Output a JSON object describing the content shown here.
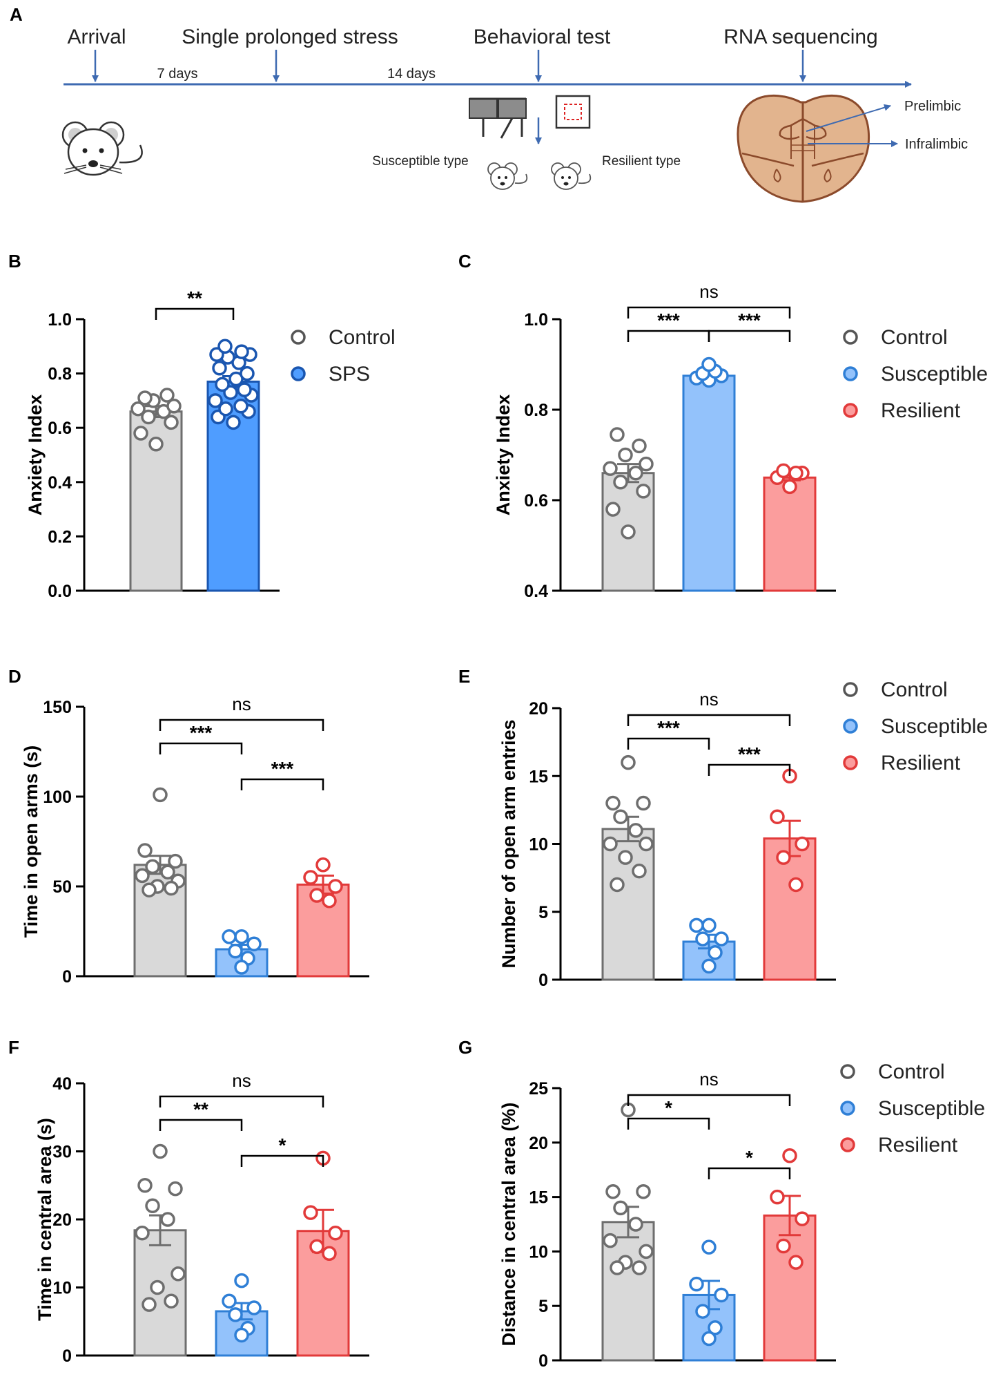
{
  "colors": {
    "control_fill": "#d9d9d9",
    "control_edge": "#6e6e6e",
    "sps_fill": "#4f9dff",
    "sps_edge": "#1a56b0",
    "susceptible_fill": "#93c2fb",
    "susceptible_edge": "#2f7fd6",
    "resilient_fill": "#fb9d9d",
    "resilient_edge": "#e23a3a",
    "timeline": "#3e6ab1",
    "brain_fill": "#e2b48e",
    "brain_edge": "#8b4a2b"
  },
  "panelA": {
    "letter": "A",
    "events": [
      {
        "label": "Arrival"
      },
      {
        "label": "Single prolonged stress"
      },
      {
        "label": "Behavioral test"
      },
      {
        "label": "RNA sequencing"
      }
    ],
    "intervals": [
      "7 days",
      "14 days"
    ],
    "susceptible_label": "Susceptible type",
    "resilient_label": "Resilient type",
    "region_labels": [
      "Prelimbic",
      "Infralimbic"
    ]
  },
  "chart_data": [
    {
      "panel": "B",
      "type": "bar",
      "categories": [
        "Control",
        "SPS"
      ],
      "ylabel": "Anxiety Index",
      "ylim": [
        0,
        1.0
      ],
      "yticks": [
        0.0,
        0.2,
        0.4,
        0.6,
        0.8,
        1.0
      ],
      "tick_labels": [
        "0.0",
        "0.2",
        "0.4",
        "0.6",
        "0.8",
        "1.0"
      ],
      "series": [
        {
          "name": "Control",
          "mean": 0.66,
          "sem": 0.02,
          "points": [
            0.54,
            0.58,
            0.62,
            0.64,
            0.66,
            0.67,
            0.68,
            0.7,
            0.72,
            0.71
          ]
        },
        {
          "name": "SPS",
          "mean": 0.77,
          "sem": 0.02,
          "points": [
            0.62,
            0.64,
            0.66,
            0.67,
            0.68,
            0.7,
            0.72,
            0.73,
            0.74,
            0.76,
            0.78,
            0.8,
            0.82,
            0.84,
            0.86,
            0.87,
            0.87,
            0.88,
            0.9
          ]
        }
      ],
      "legend": [
        "Control",
        "SPS"
      ],
      "comparisons": [
        {
          "from": 0,
          "to": 1,
          "label": "**"
        }
      ]
    },
    {
      "panel": "C",
      "type": "bar",
      "categories": [
        "Control",
        "Susceptible",
        "Resilient"
      ],
      "ylabel": "Anxiety Index",
      "ylim": [
        0.4,
        1.0
      ],
      "yticks": [
        0.4,
        0.6,
        0.8,
        1.0
      ],
      "tick_labels": [
        "0.4",
        "0.6",
        "0.8",
        "1.0"
      ],
      "series": [
        {
          "name": "Control",
          "mean": 0.66,
          "sem": 0.02,
          "points": [
            0.53,
            0.58,
            0.62,
            0.64,
            0.66,
            0.67,
            0.68,
            0.7,
            0.72,
            0.745
          ]
        },
        {
          "name": "Susceptible",
          "mean": 0.875,
          "sem": 0.006,
          "points": [
            0.865,
            0.87,
            0.875,
            0.88,
            0.885,
            0.9
          ]
        },
        {
          "name": "Resilient",
          "mean": 0.65,
          "sem": 0.006,
          "points": [
            0.63,
            0.65,
            0.66,
            0.665,
            0.66
          ]
        }
      ],
      "legend": [
        "Control",
        "Susceptible",
        "Resilient"
      ],
      "comparisons": [
        {
          "from": 0,
          "to": 1,
          "label": "***"
        },
        {
          "from": 1,
          "to": 2,
          "label": "***"
        },
        {
          "from": 0,
          "to": 2,
          "label": "ns"
        }
      ]
    },
    {
      "panel": "D",
      "type": "bar",
      "categories": [
        "Control",
        "Susceptible",
        "Resilient"
      ],
      "ylabel": "Time in open arms (s)",
      "ylim": [
        0,
        150
      ],
      "yticks": [
        0,
        50,
        100,
        150
      ],
      "tick_labels": [
        "0",
        "50",
        "100",
        "150"
      ],
      "series": [
        {
          "name": "Control",
          "mean": 62,
          "sem": 5,
          "points": [
            101,
            70,
            64,
            61,
            58,
            56,
            53,
            50,
            49,
            48
          ]
        },
        {
          "name": "Susceptible",
          "mean": 15,
          "sem": 2.5,
          "points": [
            22,
            22,
            18,
            14,
            10,
            5
          ]
        },
        {
          "name": "Resilient",
          "mean": 51,
          "sem": 5,
          "points": [
            62,
            55,
            50,
            45,
            42
          ]
        }
      ],
      "legend": [],
      "comparisons": [
        {
          "from": 0,
          "to": 1,
          "label": "***"
        },
        {
          "from": 1,
          "to": 2,
          "label": "***"
        },
        {
          "from": 0,
          "to": 2,
          "label": "ns"
        }
      ]
    },
    {
      "panel": "E",
      "type": "bar",
      "categories": [
        "Control",
        "Susceptible",
        "Resilient"
      ],
      "ylabel": "Number of open arm entries",
      "ylim": [
        0,
        20
      ],
      "yticks": [
        0,
        5,
        10,
        15,
        20
      ],
      "tick_labels": [
        "0",
        "5",
        "10",
        "15",
        "20"
      ],
      "series": [
        {
          "name": "Control",
          "mean": 11.1,
          "sem": 0.9,
          "points": [
            16,
            13,
            13,
            12,
            11,
            10,
            10,
            9,
            8,
            7
          ]
        },
        {
          "name": "Susceptible",
          "mean": 2.8,
          "sem": 0.5,
          "points": [
            4,
            4,
            3,
            3,
            2,
            1
          ]
        },
        {
          "name": "Resilient",
          "mean": 10.4,
          "sem": 1.3,
          "points": [
            15,
            12,
            10,
            9,
            7
          ]
        }
      ],
      "legend": [
        "Control",
        "Susceptible",
        "Resilient"
      ],
      "comparisons": [
        {
          "from": 0,
          "to": 1,
          "label": "***"
        },
        {
          "from": 1,
          "to": 2,
          "label": "***"
        },
        {
          "from": 0,
          "to": 2,
          "label": "ns"
        }
      ]
    },
    {
      "panel": "F",
      "type": "bar",
      "categories": [
        "Control",
        "Susceptible",
        "Resilient"
      ],
      "ylabel": "Time in central area (s)",
      "ylim": [
        0,
        40
      ],
      "yticks": [
        0,
        10,
        20,
        30,
        40
      ],
      "tick_labels": [
        "0",
        "10",
        "20",
        "30",
        "40"
      ],
      "series": [
        {
          "name": "Control",
          "mean": 18.4,
          "sem": 2.2,
          "points": [
            30,
            25,
            24.5,
            22,
            20,
            18,
            12,
            10,
            8,
            7.5
          ]
        },
        {
          "name": "Susceptible",
          "mean": 6.5,
          "sem": 1.2,
          "points": [
            11,
            8,
            7,
            6,
            4,
            3
          ]
        },
        {
          "name": "Resilient",
          "mean": 18.3,
          "sem": 3.1,
          "points": [
            29,
            21,
            18,
            16,
            15
          ]
        }
      ],
      "legend": [],
      "comparisons": [
        {
          "from": 0,
          "to": 1,
          "label": "**"
        },
        {
          "from": 1,
          "to": 2,
          "label": "*"
        },
        {
          "from": 0,
          "to": 2,
          "label": "ns"
        }
      ]
    },
    {
      "panel": "G",
      "type": "bar",
      "categories": [
        "Control",
        "Susceptible",
        "Resilient"
      ],
      "ylabel": "Distance in central area (%)",
      "ylim": [
        0,
        25
      ],
      "yticks": [
        0,
        5,
        10,
        15,
        20,
        25
      ],
      "tick_labels": [
        "0",
        "5",
        "10",
        "15",
        "20",
        "25"
      ],
      "series": [
        {
          "name": "Control",
          "mean": 12.7,
          "sem": 1.4,
          "points": [
            23,
            15.5,
            15.5,
            14,
            12.5,
            11,
            10,
            9,
            8.5,
            8.5
          ]
        },
        {
          "name": "Susceptible",
          "mean": 6.0,
          "sem": 1.3,
          "points": [
            10.4,
            7,
            6,
            4.5,
            3,
            2
          ]
        },
        {
          "name": "Resilient",
          "mean": 13.3,
          "sem": 1.8,
          "points": [
            18.8,
            15,
            13,
            10.5,
            9
          ]
        }
      ],
      "legend": [
        "Control",
        "Susceptible",
        "Resilient"
      ],
      "comparisons": [
        {
          "from": 0,
          "to": 1,
          "label": "*"
        },
        {
          "from": 1,
          "to": 2,
          "label": "*"
        },
        {
          "from": 0,
          "to": 2,
          "label": "ns"
        }
      ]
    }
  ]
}
